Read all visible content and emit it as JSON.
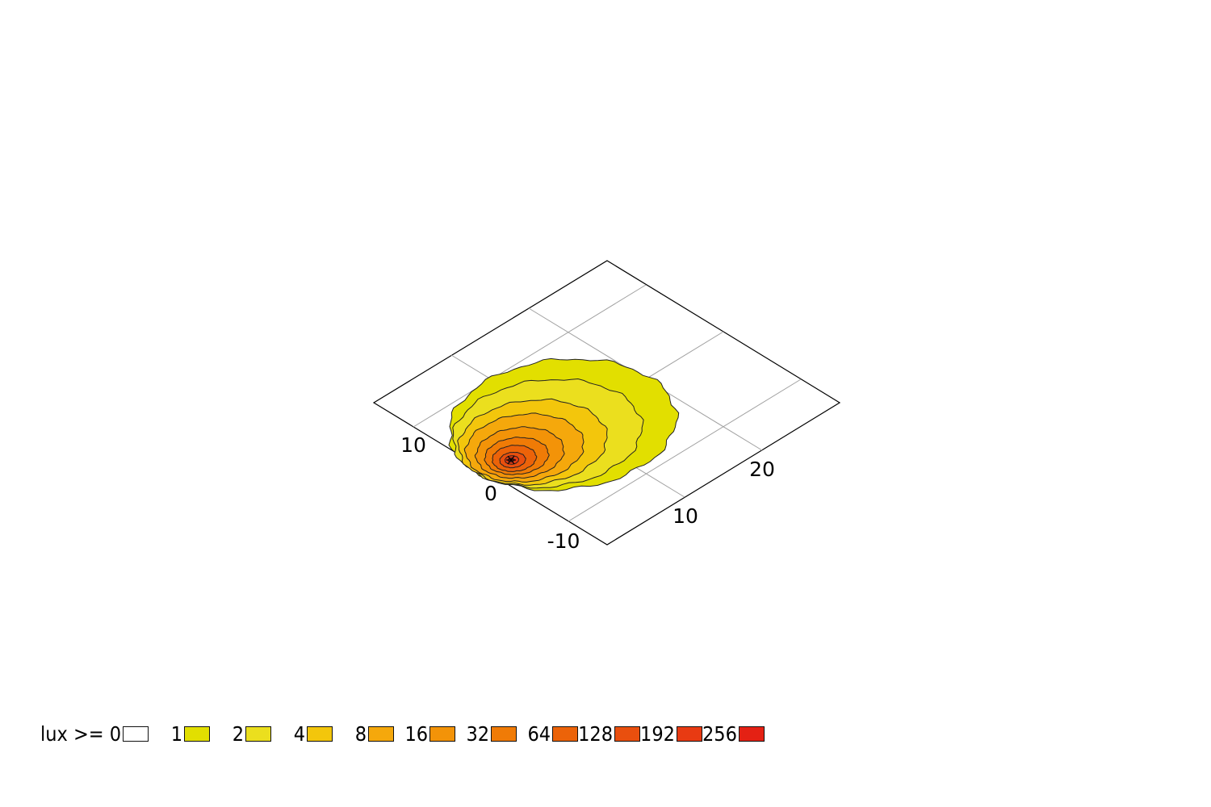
{
  "chart_data": {
    "type": "heatmap",
    "title": "",
    "legend_prefix": "lux >= ",
    "levels": [
      0,
      1,
      2,
      4,
      8,
      16,
      32,
      64,
      128,
      192,
      256
    ],
    "level_labels": [
      "0",
      "1",
      "2",
      "4",
      "8",
      "16",
      "32",
      "64",
      "128",
      "192",
      "256"
    ],
    "level_colors": [
      "#ffffff",
      "#e2df00",
      "#ebdf1e",
      "#f3c60c",
      "#f5a80c",
      "#f39308",
      "#f07b06",
      "#ec6309",
      "#e94f0e",
      "#e83a12",
      "#e42114"
    ],
    "axis_a": {
      "ticks": [
        10,
        20
      ],
      "tick_labels": [
        "10",
        "20"
      ]
    },
    "axis_b": {
      "ticks": [
        -10,
        0,
        10
      ],
      "tick_labels": [
        "-10",
        "0",
        "10"
      ]
    },
    "source_location": {
      "a": 0,
      "b": 0
    },
    "legend_placement": "bottom-left",
    "grid": true
  }
}
